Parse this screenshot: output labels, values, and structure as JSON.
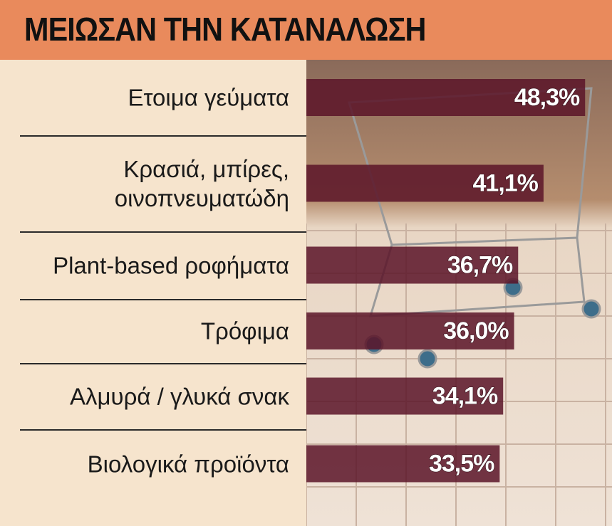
{
  "chart_data": {
    "type": "bar",
    "title": "ΜΕΙΩΣΑΝ ΤΗΝ ΚΑΤΑΝΑΛΩΣΗ",
    "categories": [
      "Ετοιμα γεύματα",
      "Κρασιά, μπίρες,\nοινοπνευματώδη",
      "Plant-based ροφήματα",
      "Τρόφιμα",
      "Αλμυρά / γλυκά σνακ",
      "Βιολογικά προϊόντα"
    ],
    "values": [
      48.3,
      41.1,
      36.7,
      36.0,
      34.1,
      33.5
    ],
    "value_labels": [
      "48,3%",
      "41,1%",
      "36,7%",
      "36,0%",
      "34,1%",
      "33,5%"
    ],
    "color": "#5a1428"
  }
}
